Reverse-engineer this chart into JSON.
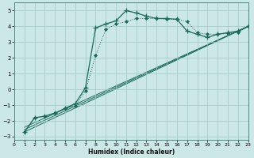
{
  "xlabel": "Humidex (Indice chaleur)",
  "bg_color": "#cce8e6",
  "grid_color": "#a0c8c4",
  "line_color": "#1a6b5a",
  "xlim": [
    0,
    23
  ],
  "ylim": [
    -3.2,
    5.5
  ],
  "xticks": [
    0,
    1,
    2,
    3,
    4,
    5,
    6,
    7,
    8,
    9,
    10,
    11,
    12,
    13,
    14,
    15,
    16,
    17,
    18,
    19,
    20,
    21,
    22,
    23
  ],
  "yticks": [
    -3,
    -2,
    -1,
    0,
    1,
    2,
    3,
    4,
    5
  ],
  "series_plus": {
    "x": [
      1,
      2,
      3,
      4,
      5,
      6,
      7,
      8,
      9,
      10,
      11,
      12,
      13,
      14,
      15,
      16,
      17,
      18,
      19,
      20,
      21,
      22,
      23
    ],
    "y": [
      -2.7,
      -1.8,
      -1.7,
      -1.5,
      -1.2,
      -0.9,
      0.1,
      3.9,
      4.15,
      4.35,
      5.0,
      4.85,
      4.65,
      4.5,
      4.5,
      4.45,
      3.7,
      3.5,
      3.3,
      3.5,
      3.6,
      3.7,
      4.0
    ]
  },
  "series_dot": {
    "x": [
      1,
      2,
      3,
      4,
      5,
      6,
      7,
      8,
      9,
      10,
      11,
      12,
      13,
      14,
      15,
      16,
      17,
      18,
      19,
      20,
      21,
      22,
      23
    ],
    "y": [
      -2.7,
      -1.8,
      -1.7,
      -1.5,
      -1.2,
      -1.05,
      -0.1,
      2.15,
      3.8,
      4.15,
      4.3,
      4.5,
      4.5,
      4.5,
      4.45,
      4.45,
      4.3,
      3.6,
      3.5,
      3.5,
      3.55,
      3.6,
      4.0
    ]
  },
  "linear_lines": [
    {
      "x": [
        1,
        23
      ],
      "y": [
        -2.7,
        4.0
      ]
    },
    {
      "x": [
        1,
        23
      ],
      "y": [
        -2.7,
        4.0
      ]
    },
    {
      "x": [
        1,
        23
      ],
      "y": [
        -2.7,
        4.0
      ]
    }
  ]
}
